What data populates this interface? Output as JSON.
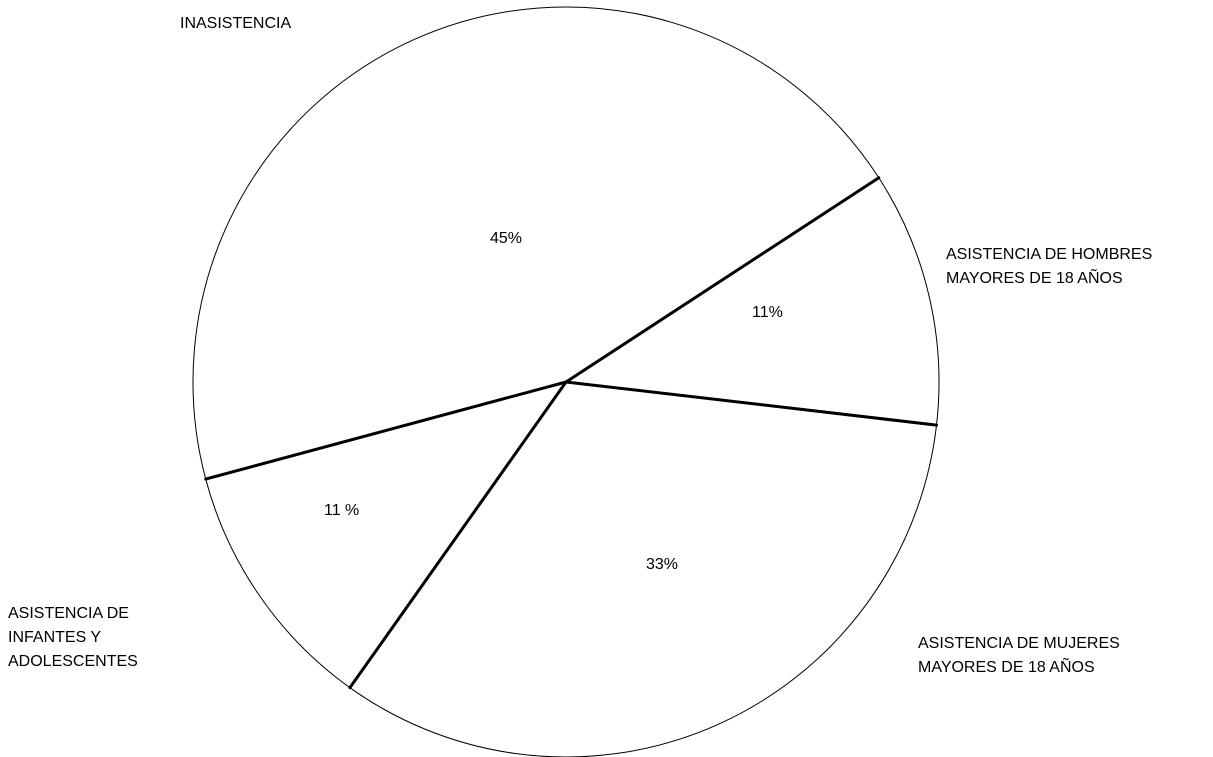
{
  "chart_data": {
    "type": "pie",
    "title": "",
    "slices": [
      {
        "name": "INASISTENCIA",
        "name_lines": [
          "INASISTENCIA"
        ],
        "value": 45,
        "label": "45%"
      },
      {
        "name": "ASISTENCIA DE HOMBRES MAYORES DE 18 AÑOS",
        "name_lines": [
          "ASISTENCIA DE HOMBRES",
          "MAYORES DE 18 AÑOS"
        ],
        "value": 11,
        "label": "11%"
      },
      {
        "name": "ASISTENCIA DE MUJERES MAYORES DE 18 AÑOS",
        "name_lines": [
          "ASISTENCIA DE MUJERES",
          "MAYORES DE 18 AÑOS"
        ],
        "value": 33,
        "label": "33%"
      },
      {
        "name": "ASISTENCIA DE INFANTES Y ADOLESCENTES",
        "name_lines": [
          "ASISTENCIA DE",
          "INFANTES Y",
          "ADOLESCENTES"
        ],
        "value": 11,
        "label": "11 %"
      }
    ],
    "legend": "none",
    "colors": {
      "fill": "#ffffff",
      "stroke": "#000000"
    }
  }
}
